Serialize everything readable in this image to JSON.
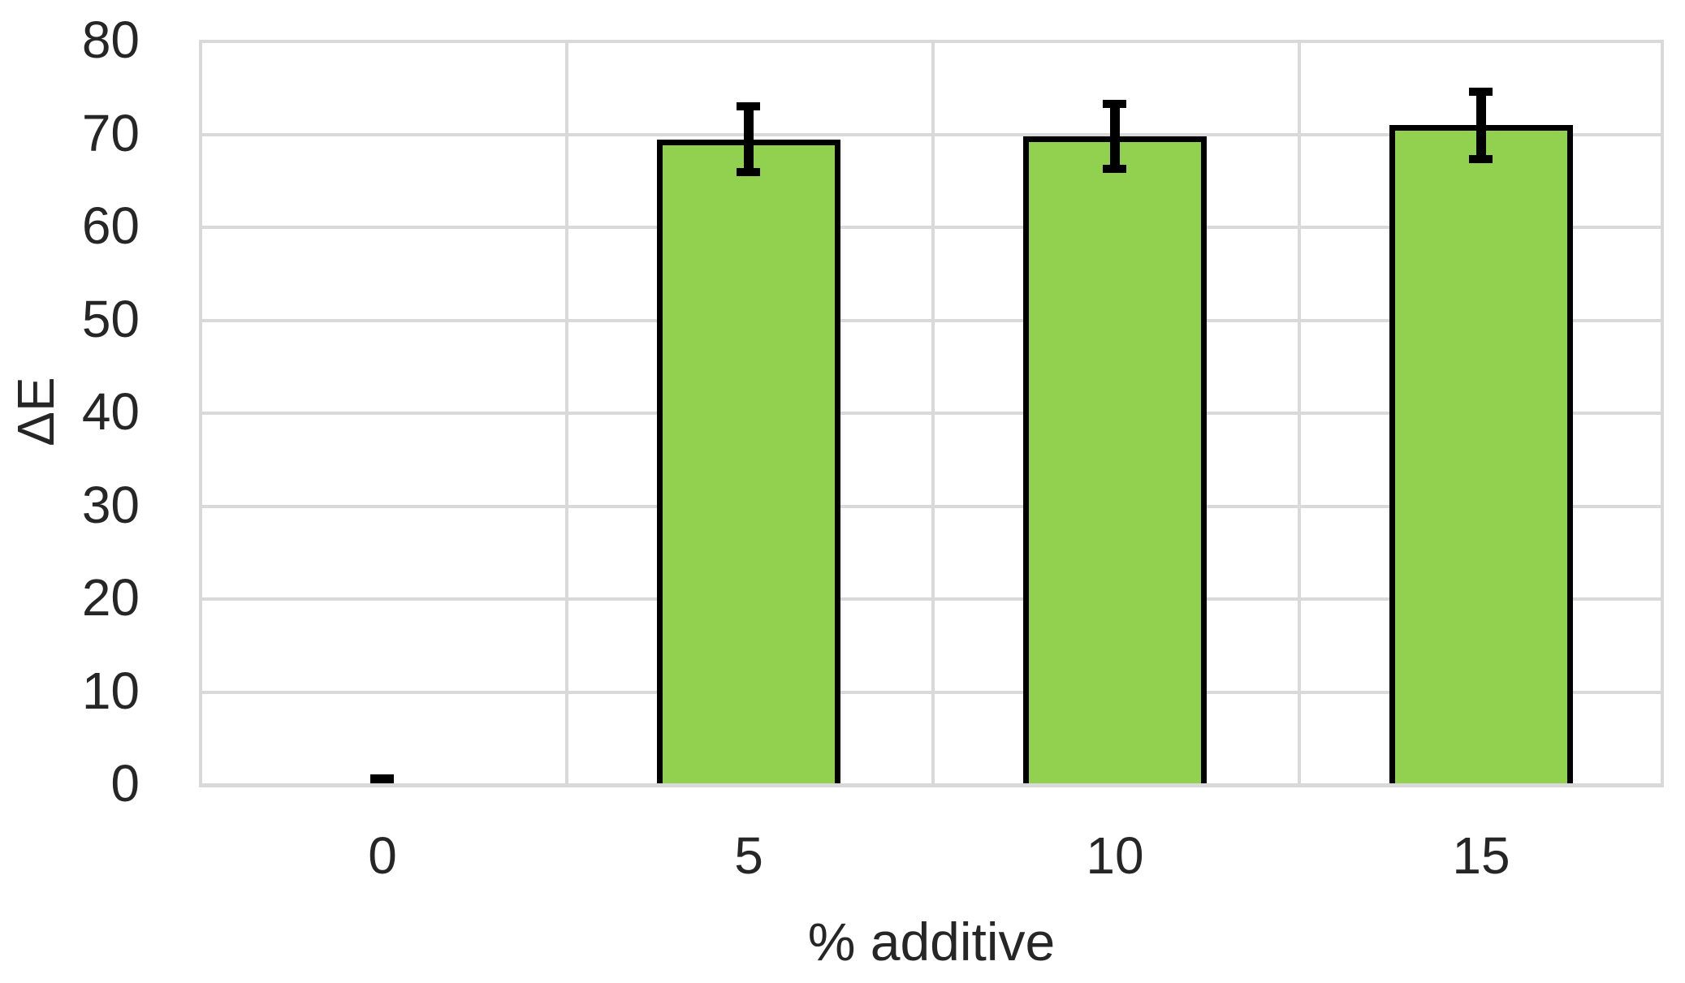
{
  "chart_data": {
    "type": "bar",
    "title": "",
    "categories": [
      "0",
      "5",
      "10",
      "15"
    ],
    "series": [
      {
        "name": "ΔE",
        "values": [
          0.2,
          69.3,
          69.6,
          70.8
        ],
        "error_bars": [
          0.35,
          3.5,
          3.5,
          3.6
        ]
      }
    ],
    "xlabel": "% additive",
    "ylabel": "ΔE",
    "ylim": [
      0,
      80
    ],
    "yticks": [
      0,
      10,
      20,
      30,
      40,
      50,
      60,
      70,
      80
    ],
    "grid": true,
    "legend": false,
    "bar_fill_color": "#92d050",
    "bar_border_color": "#000000",
    "error_bar_color": "#000000",
    "gridline_color": "#d9d9d9",
    "axis_line_color": "#d9d9d9",
    "text_color": "#262626",
    "background_color": "#ffffff"
  }
}
